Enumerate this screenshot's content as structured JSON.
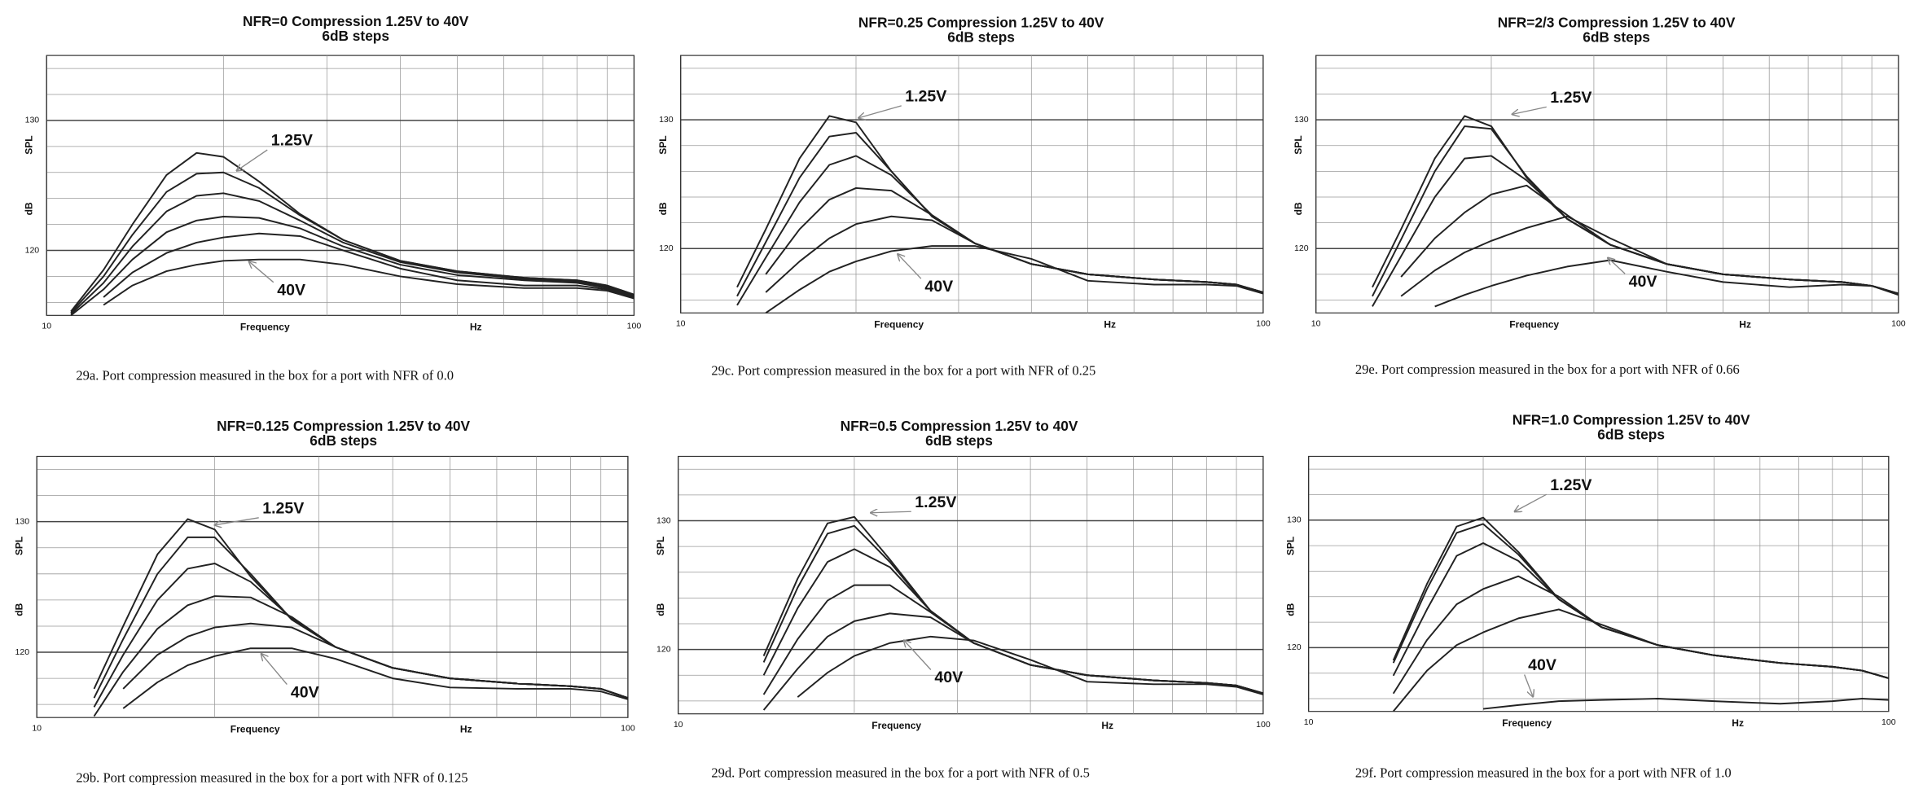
{
  "chart_data": [
    {
      "type": "line",
      "title": "NFR=0 Compression 1.25V to 40V",
      "subtitle": "6dB steps",
      "xlabel": "Frequency",
      "xunit": "Hz",
      "ylabel": "SPL",
      "yunit": "dB",
      "caption": "29a. Port compression measured in the box for a port with NFR of 0.0",
      "log_x": true,
      "xlim": [
        10,
        100
      ],
      "xticks": [
        10,
        100
      ],
      "xminor": [
        20,
        30,
        40,
        50,
        60,
        70,
        80,
        90
      ],
      "ylim": [
        115,
        135
      ],
      "yticks": [
        120,
        130
      ],
      "yminor": [
        116,
        118,
        122,
        124,
        126,
        128,
        132,
        134
      ],
      "grid": true,
      "color": "#222222",
      "annotations": [
        "1.25V",
        "40V"
      ],
      "x": [
        11,
        12.5,
        14,
        16,
        18,
        20,
        23,
        27,
        32,
        40,
        50,
        65,
        80,
        90,
        100
      ],
      "series": [
        {
          "values": [
            115.3,
            118.5,
            122,
            125.8,
            127.5,
            127.2,
            125.3,
            122.8,
            120.8,
            119.2,
            118.4,
            117.9,
            117.7,
            117.3,
            116.6
          ]
        },
        {
          "values": [
            115.2,
            118,
            121.2,
            124.5,
            125.9,
            126,
            124.8,
            122.7,
            120.8,
            119.2,
            118.4,
            117.9,
            117.7,
            117.3,
            116.6
          ]
        },
        {
          "values": [
            115.1,
            117.5,
            120.3,
            123,
            124.2,
            124.4,
            123.8,
            122.3,
            120.6,
            119.1,
            118.3,
            117.8,
            117.6,
            117.2,
            116.5
          ]
        },
        {
          "values": [
            115,
            117,
            119.3,
            121.4,
            122.3,
            122.6,
            122.5,
            121.7,
            120.3,
            118.9,
            118.1,
            117.7,
            117.5,
            117.1,
            116.5
          ]
        },
        {
          "values": [
            null,
            116.4,
            118.3,
            119.8,
            120.6,
            121,
            121.3,
            121.1,
            120,
            118.6,
            117.7,
            117.3,
            117.3,
            117,
            116.4
          ]
        },
        {
          "values": [
            null,
            115.8,
            117.3,
            118.4,
            118.9,
            119.2,
            119.3,
            119.3,
            118.9,
            118,
            117.4,
            117.1,
            117.1,
            116.9,
            116.3
          ]
        }
      ]
    },
    {
      "type": "line",
      "title": "NFR=0.25 Compression 1.25V to 40V",
      "subtitle": "6dB steps",
      "xlabel": "Frequency",
      "xunit": "Hz",
      "ylabel": "SPL",
      "yunit": "dB",
      "caption": "29c. Port compression measured in the box for a port with NFR of 0.25",
      "log_x": true,
      "xlim": [
        10,
        100
      ],
      "xticks": [
        10,
        100
      ],
      "xminor": [
        20,
        30,
        40,
        50,
        60,
        70,
        80,
        90
      ],
      "ylim": [
        115,
        135
      ],
      "yticks": [
        120,
        130
      ],
      "yminor": [
        116,
        118,
        122,
        124,
        126,
        128,
        132,
        134
      ],
      "grid": true,
      "color": "#222222",
      "annotations": [
        "1.25V",
        "40V"
      ],
      "x": [
        11,
        12.5,
        14,
        16,
        18,
        20,
        23,
        27,
        32,
        40,
        50,
        65,
        80,
        90,
        100
      ],
      "series": [
        {
          "values": [
            null,
            117,
            121.5,
            127,
            130.3,
            129.8,
            126,
            122.5,
            120.4,
            118.8,
            118,
            117.6,
            117.4,
            117.2,
            116.6
          ]
        },
        {
          "values": [
            null,
            116.3,
            120.5,
            125.5,
            128.7,
            129,
            126,
            122.5,
            120.4,
            118.8,
            118,
            117.6,
            117.4,
            117.2,
            116.6
          ]
        },
        {
          "values": [
            null,
            115.6,
            119.3,
            123.6,
            126.5,
            127.2,
            125.7,
            122.6,
            120.4,
            118.8,
            118,
            117.6,
            117.4,
            117.2,
            116.6
          ]
        },
        {
          "values": [
            null,
            null,
            118,
            121.5,
            123.8,
            124.7,
            124.5,
            122.6,
            120.4,
            118.8,
            118,
            117.6,
            117.4,
            117.2,
            116.6
          ]
        },
        {
          "values": [
            null,
            null,
            116.6,
            119,
            120.8,
            121.9,
            122.5,
            122.2,
            120.4,
            118.8,
            118,
            117.6,
            117.4,
            117.2,
            116.6
          ]
        },
        {
          "values": [
            null,
            null,
            115,
            116.8,
            118.2,
            119,
            119.8,
            120.2,
            120.2,
            119.2,
            117.5,
            117.2,
            117.2,
            117.1,
            116.5
          ]
        }
      ]
    },
    {
      "type": "line",
      "title": "NFR=2/3 Compression 1.25V to 40V",
      "subtitle": "6dB steps",
      "xlabel": "Frequency",
      "xunit": "Hz",
      "ylabel": "SPL",
      "yunit": "dB",
      "caption": "29e. Port compression measured in the box for a port with NFR of 0.66",
      "log_x": true,
      "xlim": [
        10,
        100
      ],
      "xticks": [
        10,
        100
      ],
      "xminor": [
        20,
        30,
        40,
        50,
        60,
        70,
        80,
        90
      ],
      "ylim": [
        115,
        135
      ],
      "yticks": [
        120,
        130
      ],
      "yminor": [
        116,
        118,
        122,
        124,
        126,
        128,
        132,
        134
      ],
      "grid": true,
      "color": "#222222",
      "annotations": [
        "1.25V",
        "40V"
      ],
      "x": [
        11,
        12.5,
        14,
        16,
        18,
        20,
        23,
        27,
        32,
        40,
        50,
        65,
        80,
        90,
        100
      ],
      "series": [
        {
          "values": [
            null,
            117,
            121.5,
            127,
            130.3,
            129.5,
            125.5,
            122.3,
            120.3,
            118.8,
            118,
            117.6,
            117.4,
            117.1,
            116.5
          ]
        },
        {
          "values": [
            null,
            116.3,
            120.7,
            126,
            129.5,
            129.3,
            125.6,
            122.3,
            120.3,
            118.8,
            118,
            117.6,
            117.4,
            117.1,
            116.5
          ]
        },
        {
          "values": [
            null,
            115.5,
            119.4,
            124,
            127,
            127.2,
            125.3,
            122.3,
            120.3,
            118.8,
            118,
            117.6,
            117.4,
            117.1,
            116.5
          ]
        },
        {
          "values": [
            null,
            null,
            117.8,
            120.8,
            122.8,
            124.2,
            124.9,
            122.6,
            120.3,
            118.8,
            118,
            117.6,
            117.4,
            117.1,
            116.5
          ]
        },
        {
          "values": [
            null,
            null,
            116.3,
            118.3,
            119.7,
            120.6,
            121.6,
            122.5,
            120.8,
            118.8,
            118,
            117.6,
            117.4,
            117.1,
            116.5
          ]
        },
        {
          "values": [
            null,
            null,
            null,
            115.5,
            116.4,
            117.1,
            117.9,
            118.6,
            119.1,
            118.2,
            117.4,
            117,
            117.2,
            117.1,
            116.4
          ]
        }
      ]
    },
    {
      "type": "line",
      "title": "NFR=0.125 Compression 1.25V to 40V",
      "subtitle": "6dB steps",
      "xlabel": "Frequency",
      "xunit": "Hz",
      "ylabel": "SPL",
      "yunit": "dB",
      "caption": "29b. Port compression measured in the box for a port with NFR of 0.125",
      "log_x": true,
      "xlim": [
        10,
        100
      ],
      "xticks": [
        10,
        100
      ],
      "xminor": [
        20,
        30,
        40,
        50,
        60,
        70,
        80,
        90
      ],
      "ylim": [
        115,
        135
      ],
      "yticks": [
        120,
        130
      ],
      "yminor": [
        116,
        118,
        122,
        124,
        126,
        128,
        132,
        134
      ],
      "grid": true,
      "color": "#222222",
      "annotations": [
        "1.25V",
        "40V"
      ],
      "x": [
        11,
        12.5,
        14,
        16,
        18,
        20,
        23,
        27,
        32,
        40,
        50,
        65,
        80,
        90,
        100
      ],
      "series": [
        {
          "values": [
            null,
            117.2,
            122,
            127.5,
            130.2,
            129.4,
            125.8,
            122.5,
            120.4,
            118.8,
            118,
            117.6,
            117.4,
            117.2,
            116.5
          ]
        },
        {
          "values": [
            null,
            116.5,
            121,
            126,
            128.8,
            128.8,
            126,
            122.5,
            120.4,
            118.8,
            118,
            117.6,
            117.4,
            117.2,
            116.5
          ]
        },
        {
          "values": [
            null,
            115.8,
            119.8,
            124,
            126.4,
            126.8,
            125.4,
            122.6,
            120.4,
            118.8,
            118,
            117.6,
            117.4,
            117.2,
            116.5
          ]
        },
        {
          "values": [
            null,
            115.1,
            118.5,
            121.8,
            123.6,
            124.3,
            124.2,
            122.7,
            120.4,
            118.8,
            118,
            117.6,
            117.4,
            117.2,
            116.5
          ]
        },
        {
          "values": [
            null,
            null,
            117.2,
            119.8,
            121.2,
            121.9,
            122.2,
            121.9,
            120.4,
            118.8,
            118,
            117.6,
            117.4,
            117.2,
            116.5
          ]
        },
        {
          "values": [
            null,
            null,
            115.7,
            117.7,
            119,
            119.7,
            120.3,
            120.3,
            119.5,
            118,
            117.3,
            117.2,
            117.2,
            117,
            116.4
          ]
        }
      ]
    },
    {
      "type": "line",
      "title": "NFR=0.5 Compression 1.25V to 40V",
      "subtitle": "6dB steps",
      "xlabel": "Frequency",
      "xunit": "Hz",
      "ylabel": "SPL",
      "yunit": "dB",
      "caption": "29d. Port compression measured in the box for a port with NFR of 0.5",
      "log_x": true,
      "xlim": [
        10,
        100
      ],
      "xticks": [
        10,
        100
      ],
      "xminor": [
        20,
        30,
        40,
        50,
        60,
        70,
        80,
        90
      ],
      "ylim": [
        115,
        135
      ],
      "yticks": [
        120,
        130
      ],
      "yminor": [
        116,
        118,
        122,
        124,
        126,
        128,
        132,
        134
      ],
      "grid": true,
      "color": "#222222",
      "annotations": [
        "1.25V",
        "40V"
      ],
      "x": [
        11,
        12.5,
        14,
        16,
        18,
        20,
        23,
        27,
        32,
        40,
        50,
        65,
        80,
        90,
        100
      ],
      "series": [
        {
          "values": [
            null,
            null,
            119.5,
            125.5,
            129.8,
            130.3,
            127,
            123,
            120.5,
            118.8,
            118,
            117.6,
            117.4,
            117.2,
            116.6
          ]
        },
        {
          "values": [
            null,
            null,
            119,
            124.8,
            129,
            129.6,
            126.8,
            123,
            120.5,
            118.8,
            118,
            117.6,
            117.4,
            117.2,
            116.6
          ]
        },
        {
          "values": [
            null,
            null,
            118,
            123.2,
            126.8,
            127.8,
            126.4,
            123,
            120.5,
            118.8,
            118,
            117.6,
            117.4,
            117.2,
            116.6
          ]
        },
        {
          "values": [
            null,
            null,
            116.5,
            120.8,
            123.8,
            125,
            125,
            122.9,
            120.5,
            118.8,
            118,
            117.6,
            117.4,
            117.2,
            116.6
          ]
        },
        {
          "values": [
            null,
            null,
            115.3,
            118.5,
            121,
            122.2,
            122.8,
            122.5,
            120.5,
            118.8,
            118,
            117.6,
            117.4,
            117.2,
            116.6
          ]
        },
        {
          "values": [
            null,
            null,
            null,
            116.3,
            118.2,
            119.5,
            120.5,
            121,
            120.7,
            119.2,
            117.5,
            117.3,
            117.3,
            117.1,
            116.5
          ]
        }
      ]
    },
    {
      "type": "line",
      "title": "NFR=1.0 Compression 1.25V to 40V",
      "subtitle": "6dB steps",
      "xlabel": "Frequency",
      "xunit": "Hz",
      "ylabel": "SPL",
      "yunit": "dB",
      "caption": "29f. Port compression measured in the box for a port with NFR of 1.0",
      "log_x": true,
      "xlim": [
        10,
        100
      ],
      "xticks": [
        10,
        100
      ],
      "xminor": [
        20,
        30,
        40,
        50,
        60,
        70,
        80,
        90
      ],
      "ylim": [
        115,
        135
      ],
      "yticks": [
        120,
        130
      ],
      "yminor": [
        116,
        118,
        122,
        124,
        126,
        128,
        132,
        134
      ],
      "grid": true,
      "color": "#222222",
      "annotations": [
        "1.25V",
        "40V"
      ],
      "x": [
        11,
        12.5,
        14,
        16,
        18,
        20,
        23,
        27,
        32,
        40,
        50,
        65,
        80,
        90,
        100
      ],
      "series": [
        {
          "values": [
            null,
            null,
            119,
            125,
            129.5,
            130.2,
            127.5,
            123.8,
            121.6,
            120.2,
            119.4,
            118.8,
            118.5,
            118.2,
            117.6
          ]
        },
        {
          "values": [
            null,
            null,
            118.8,
            124.6,
            129,
            129.7,
            127.3,
            123.8,
            121.6,
            120.2,
            119.4,
            118.8,
            118.5,
            118.2,
            117.6
          ]
        },
        {
          "values": [
            null,
            null,
            117.8,
            123,
            127.2,
            128.2,
            126.8,
            123.8,
            121.6,
            120.2,
            119.4,
            118.8,
            118.5,
            118.2,
            117.6
          ]
        },
        {
          "values": [
            null,
            null,
            116.4,
            120.6,
            123.4,
            124.6,
            125.6,
            124,
            121.6,
            120.2,
            119.4,
            118.8,
            118.5,
            118.2,
            117.6
          ]
        },
        {
          "values": [
            null,
            null,
            115,
            118.2,
            120.2,
            121.2,
            122.3,
            123,
            121.8,
            120.2,
            119.4,
            118.8,
            118.5,
            118.2,
            117.6
          ]
        },
        {
          "values": [
            null,
            null,
            null,
            null,
            null,
            115.2,
            115.5,
            115.8,
            115.9,
            116,
            115.8,
            115.6,
            115.8,
            116,
            115.9
          ]
        }
      ]
    }
  ]
}
